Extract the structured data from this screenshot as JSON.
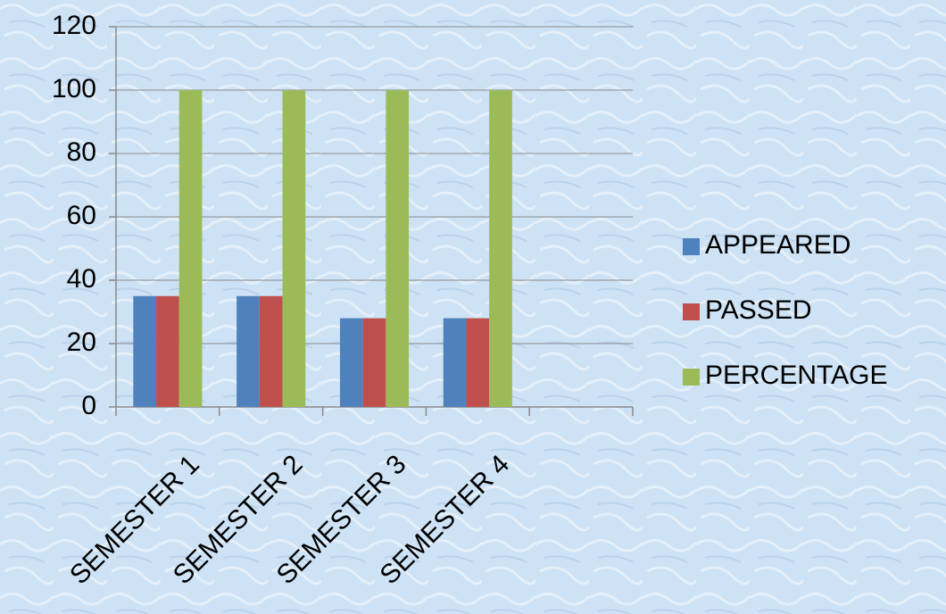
{
  "chart_data": {
    "type": "bar",
    "categories": [
      "SEMESTER 1",
      "SEMESTER 2",
      "SEMESTER 3",
      "SEMESTER 4",
      null
    ],
    "series": [
      {
        "name": "APPEARED",
        "color": "#4f81bd",
        "values": [
          35,
          35,
          28,
          28,
          null
        ]
      },
      {
        "name": "PASSED",
        "color": "#c0504d",
        "values": [
          35,
          35,
          28,
          28,
          null
        ]
      },
      {
        "name": "PERCENTAGE",
        "color": "#9bbb59",
        "values": [
          100,
          100,
          100,
          100,
          null
        ]
      }
    ],
    "ylim": [
      0,
      120
    ],
    "yticks": [
      0,
      20,
      40,
      60,
      80,
      100,
      120
    ],
    "grid": true,
    "legend": "right"
  }
}
